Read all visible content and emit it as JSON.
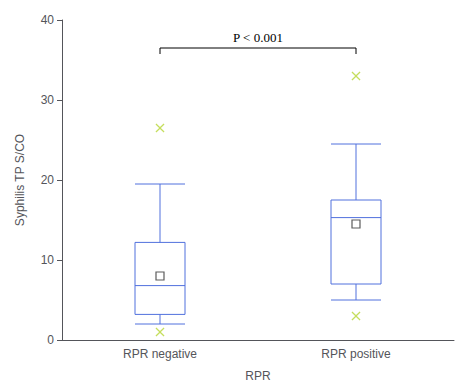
{
  "chart_data": {
    "type": "boxplot",
    "categories": [
      "RPR negative",
      "RPR positive"
    ],
    "boxes": [
      {
        "q1": 3.2,
        "median": 6.8,
        "q3": 12.2,
        "whisker_low": 2.0,
        "whisker_high": 19.5,
        "mean": 8.0,
        "outliers": [
          1.0,
          26.5
        ]
      },
      {
        "q1": 7.0,
        "median": 15.3,
        "q3": 17.5,
        "whisker_low": 5.0,
        "whisker_high": 24.5,
        "mean": 14.5,
        "outliers": [
          3.0,
          33.0
        ]
      }
    ],
    "xlabel": "RPR",
    "ylabel": "Syphilis TP S/CO",
    "ylim": [
      0,
      40
    ],
    "yticks": [
      0,
      10,
      20,
      30,
      40
    ],
    "annotation": {
      "text": "P < 0.001",
      "y": 36.5
    },
    "grid": false
  }
}
